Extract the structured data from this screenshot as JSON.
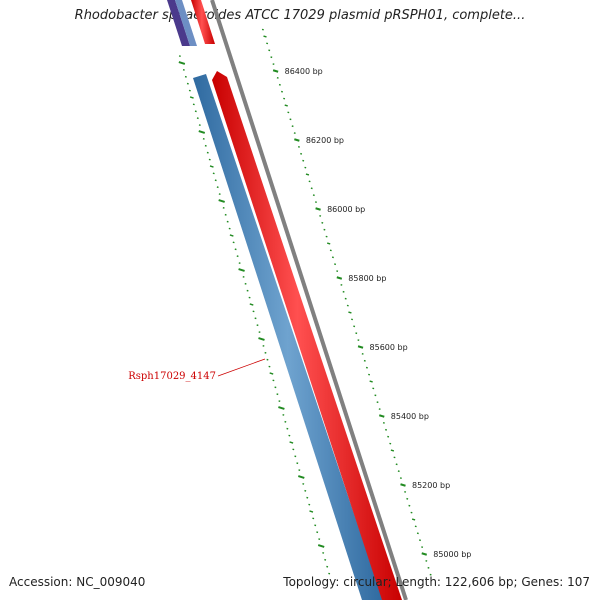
{
  "title": "Rhodobacter sphaeroides ATCC 17029 plasmid pRSPH01, complete...",
  "footer": {
    "accession": "Accession: NC_009040",
    "summary": "Topology: circular; Length: 122,606 bp; Genes: 107"
  },
  "ruler_ticks": [
    {
      "bp": 86400,
      "label": "86400 bp"
    },
    {
      "bp": 86200,
      "label": "86200 bp"
    },
    {
      "bp": 86000,
      "label": "86000 bp"
    },
    {
      "bp": 85800,
      "label": "85800 bp"
    },
    {
      "bp": 85600,
      "label": "85600 bp"
    },
    {
      "bp": 85400,
      "label": "85400 bp"
    },
    {
      "bp": 85200,
      "label": "85200 bp"
    },
    {
      "bp": 85000,
      "label": "85000 bp"
    }
  ],
  "gene_label": {
    "name": "Rsph17029_4147",
    "color": "#cc0000"
  },
  "colors": {
    "forward_gene": "#ee0000",
    "reverse_gene": "#4682b4",
    "other_gene": "#5a3d8c",
    "backbone": "#808080",
    "ticks": "#228b22"
  }
}
